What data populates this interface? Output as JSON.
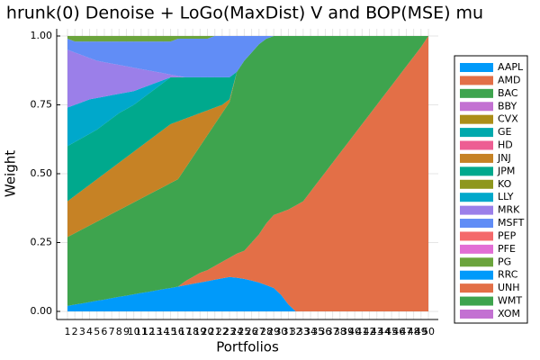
{
  "chart_data": {
    "type": "stacked_area",
    "title": "hrunk(0) Denoise + LoGo(MaxDist) V and BOP(MSE) mu",
    "x_label": "Portfolios",
    "y_label": "Weight",
    "categories": [
      "1",
      "2",
      "3",
      "4",
      "5",
      "6",
      "7",
      "8",
      "9",
      "10",
      "11",
      "12",
      "13",
      "14",
      "15",
      "16",
      "17",
      "18",
      "19",
      "20",
      "21",
      "22",
      "23",
      "24",
      "25",
      "26",
      "27",
      "28",
      "29",
      "30",
      "31",
      "32",
      "33",
      "34",
      "35",
      "36",
      "37",
      "38",
      "39",
      "40",
      "41",
      "42",
      "43",
      "44",
      "45",
      "46",
      "47",
      "48",
      "49",
      "50"
    ],
    "ylim": [
      0,
      1
    ],
    "yticks": [
      {
        "value": 0,
        "label": "0.00"
      },
      {
        "value": 0.25,
        "label": "0.25"
      },
      {
        "value": 0.5,
        "label": "0.50"
      },
      {
        "value": 0.75,
        "label": "0.75"
      },
      {
        "value": 1,
        "label": "1.00"
      }
    ],
    "grid": true,
    "series": [
      {
        "name": "AAPL",
        "color": "#009AFA",
        "values": [
          0.02,
          0.025,
          0.029,
          0.034,
          0.039,
          0.043,
          0.048,
          0.053,
          0.057,
          0.062,
          0.067,
          0.071,
          0.076,
          0.081,
          0.085,
          0.09,
          0.095,
          0.1,
          0.105,
          0.11,
          0.115,
          0.12,
          0.125,
          0.122,
          0.118,
          0.112,
          0.105,
          0.095,
          0.085,
          0.06,
          0.025,
          0,
          0,
          0,
          0,
          0,
          0,
          0,
          0,
          0,
          0,
          0,
          0,
          0,
          0,
          0,
          0,
          0,
          0,
          0
        ]
      },
      {
        "name": "AMD",
        "color": "#E36F47",
        "values": [
          0,
          0,
          0,
          0,
          0,
          0,
          0,
          0,
          0,
          0,
          0,
          0,
          0,
          0,
          0,
          0,
          0.015,
          0.025,
          0.035,
          0.04,
          0.05,
          0.06,
          0.07,
          0.088,
          0.102,
          0.138,
          0.175,
          0.225,
          0.265,
          0.3,
          0.345,
          0.385,
          0.4,
          0.435,
          0.47,
          0.505,
          0.54,
          0.575,
          0.61,
          0.645,
          0.68,
          0.715,
          0.75,
          0.785,
          0.82,
          0.855,
          0.89,
          0.925,
          0.96,
          1.0
        ]
      },
      {
        "name": "BAC",
        "color": "#3EA44E",
        "values": [
          0.25,
          0.259,
          0.269,
          0.278,
          0.287,
          0.297,
          0.306,
          0.315,
          0.325,
          0.334,
          0.343,
          0.353,
          0.362,
          0.371,
          0.381,
          0.39,
          0.41,
          0.435,
          0.46,
          0.49,
          0.515,
          0.54,
          0.565,
          0.66,
          0.69,
          0.69,
          0.69,
          0.67,
          0.65,
          0.64,
          0.63,
          0.615,
          0.6,
          0.565,
          0.53,
          0.495,
          0.46,
          0.425,
          0.39,
          0.355,
          0.32,
          0.285,
          0.25,
          0.215,
          0.18,
          0.145,
          0.11,
          0.075,
          0.04,
          0
        ]
      },
      {
        "name": "BBY",
        "color": "#C371D2",
        "values": [
          0,
          0,
          0,
          0,
          0,
          0,
          0,
          0,
          0,
          0,
          0,
          0,
          0,
          0,
          0,
          0,
          0,
          0,
          0,
          0,
          0,
          0,
          0,
          0,
          0,
          0,
          0,
          0,
          0,
          0,
          0,
          0,
          0,
          0,
          0,
          0,
          0,
          0,
          0,
          0,
          0,
          0,
          0,
          0,
          0,
          0,
          0,
          0,
          0,
          0
        ]
      },
      {
        "name": "CVX",
        "color": "#AC8E18",
        "values": [
          0,
          0,
          0,
          0,
          0,
          0,
          0,
          0,
          0,
          0,
          0,
          0,
          0,
          0,
          0,
          0,
          0,
          0,
          0,
          0,
          0,
          0,
          0,
          0,
          0,
          0,
          0,
          0,
          0,
          0,
          0,
          0,
          0,
          0,
          0,
          0,
          0,
          0,
          0,
          0,
          0,
          0,
          0,
          0,
          0,
          0,
          0,
          0,
          0,
          0
        ]
      },
      {
        "name": "GE",
        "color": "#00A9AD",
        "values": [
          0,
          0,
          0,
          0,
          0,
          0,
          0,
          0,
          0,
          0,
          0,
          0,
          0,
          0,
          0,
          0,
          0,
          0,
          0,
          0,
          0,
          0,
          0,
          0,
          0,
          0,
          0,
          0,
          0,
          0,
          0,
          0,
          0,
          0,
          0,
          0,
          0,
          0,
          0,
          0,
          0,
          0,
          0,
          0,
          0,
          0,
          0,
          0,
          0,
          0
        ]
      },
      {
        "name": "HD",
        "color": "#ED5E93",
        "values": [
          0,
          0,
          0,
          0,
          0,
          0,
          0,
          0,
          0,
          0,
          0,
          0,
          0,
          0,
          0,
          0,
          0,
          0,
          0,
          0,
          0,
          0,
          0,
          0,
          0,
          0,
          0,
          0,
          0,
          0,
          0,
          0,
          0,
          0,
          0,
          0,
          0,
          0,
          0,
          0,
          0,
          0,
          0,
          0,
          0,
          0,
          0,
          0,
          0,
          0
        ]
      },
      {
        "name": "JNJ",
        "color": "#C68225",
        "values": [
          0.13,
          0.136,
          0.142,
          0.148,
          0.154,
          0.16,
          0.166,
          0.172,
          0.178,
          0.184,
          0.19,
          0.196,
          0.202,
          0.208,
          0.214,
          0.21,
          0.18,
          0.15,
          0.12,
          0.09,
          0.06,
          0.03,
          0.01,
          0,
          0,
          0,
          0,
          0,
          0,
          0,
          0,
          0,
          0,
          0,
          0,
          0,
          0,
          0,
          0,
          0,
          0,
          0,
          0,
          0,
          0,
          0,
          0,
          0,
          0,
          0
        ]
      },
      {
        "name": "JPM",
        "color": "#00A98D",
        "values": [
          0.2,
          0.195,
          0.19,
          0.185,
          0.18,
          0.18,
          0.18,
          0.18,
          0.175,
          0.17,
          0.17,
          0.17,
          0.17,
          0.17,
          0.17,
          0.16,
          0.15,
          0.14,
          0.13,
          0.12,
          0.11,
          0.1,
          0.08,
          0,
          0,
          0,
          0,
          0,
          0,
          0,
          0,
          0,
          0,
          0,
          0,
          0,
          0,
          0,
          0,
          0,
          0,
          0,
          0,
          0,
          0,
          0,
          0,
          0,
          0,
          0
        ]
      },
      {
        "name": "KO",
        "color": "#8E971D",
        "values": [
          0,
          0,
          0,
          0,
          0,
          0,
          0,
          0,
          0,
          0,
          0,
          0,
          0,
          0,
          0,
          0,
          0,
          0,
          0,
          0,
          0,
          0,
          0,
          0,
          0,
          0,
          0,
          0,
          0,
          0,
          0,
          0,
          0,
          0,
          0,
          0,
          0,
          0,
          0,
          0,
          0,
          0,
          0,
          0,
          0,
          0,
          0,
          0,
          0,
          0
        ]
      },
      {
        "name": "LLY",
        "color": "#00A8CB",
        "values": [
          0.14,
          0.135,
          0.13,
          0.125,
          0.115,
          0.1,
          0.085,
          0.07,
          0.06,
          0.05,
          0.04,
          0.03,
          0.02,
          0.01,
          0,
          0,
          0,
          0,
          0,
          0,
          0,
          0,
          0,
          0,
          0,
          0,
          0,
          0,
          0,
          0,
          0,
          0,
          0,
          0,
          0,
          0,
          0,
          0,
          0,
          0,
          0,
          0,
          0,
          0,
          0,
          0,
          0,
          0,
          0,
          0
        ]
      },
      {
        "name": "MRK",
        "color": "#9B7FE9",
        "values": [
          0.21,
          0.19,
          0.17,
          0.15,
          0.135,
          0.125,
          0.115,
          0.105,
          0.095,
          0.085,
          0.07,
          0.055,
          0.04,
          0.025,
          0.01,
          0.005,
          0,
          0,
          0,
          0,
          0,
          0,
          0,
          0,
          0,
          0,
          0,
          0,
          0,
          0,
          0,
          0,
          0,
          0,
          0,
          0,
          0,
          0,
          0,
          0,
          0,
          0,
          0,
          0,
          0,
          0,
          0,
          0,
          0,
          0
        ]
      },
      {
        "name": "MSFT",
        "color": "#618DF6",
        "values": [
          0.04,
          0.04,
          0.05,
          0.06,
          0.07,
          0.075,
          0.08,
          0.085,
          0.09,
          0.095,
          0.1,
          0.105,
          0.11,
          0.115,
          0.12,
          0.135,
          0.14,
          0.14,
          0.14,
          0.14,
          0.15,
          0.15,
          0.15,
          0.13,
          0.09,
          0.06,
          0.03,
          0.01,
          0,
          0,
          0,
          0,
          0,
          0,
          0,
          0,
          0,
          0,
          0,
          0,
          0,
          0,
          0,
          0,
          0,
          0,
          0,
          0,
          0,
          0
        ]
      },
      {
        "name": "PEP",
        "color": "#F4696B",
        "values": [
          0,
          0,
          0,
          0,
          0,
          0,
          0,
          0,
          0,
          0,
          0,
          0,
          0,
          0,
          0,
          0,
          0,
          0,
          0,
          0,
          0,
          0,
          0,
          0,
          0,
          0,
          0,
          0,
          0,
          0,
          0,
          0,
          0,
          0,
          0,
          0,
          0,
          0,
          0,
          0,
          0,
          0,
          0,
          0,
          0,
          0,
          0,
          0,
          0,
          0
        ]
      },
      {
        "name": "PFE",
        "color": "#E26ED5",
        "values": [
          0,
          0,
          0,
          0,
          0,
          0,
          0,
          0,
          0,
          0,
          0,
          0,
          0,
          0,
          0,
          0,
          0,
          0,
          0,
          0,
          0,
          0,
          0,
          0,
          0,
          0,
          0,
          0,
          0,
          0,
          0,
          0,
          0,
          0,
          0,
          0,
          0,
          0,
          0,
          0,
          0,
          0,
          0,
          0,
          0,
          0,
          0,
          0,
          0,
          0
        ]
      },
      {
        "name": "PG",
        "color": "#6BA43C",
        "values": [
          0.01,
          0.02,
          0.02,
          0.02,
          0.02,
          0.02,
          0.02,
          0.02,
          0.02,
          0.02,
          0.02,
          0.02,
          0.02,
          0.02,
          0.02,
          0.01,
          0.01,
          0.01,
          0.01,
          0.01,
          0,
          0,
          0,
          0,
          0,
          0,
          0,
          0,
          0,
          0,
          0,
          0,
          0,
          0,
          0,
          0,
          0,
          0,
          0,
          0,
          0,
          0,
          0,
          0,
          0,
          0,
          0,
          0,
          0,
          0
        ]
      },
      {
        "name": "RRC",
        "color": "#009AFA",
        "values": [
          0,
          0,
          0,
          0,
          0,
          0,
          0,
          0,
          0,
          0,
          0,
          0,
          0,
          0,
          0,
          0,
          0,
          0,
          0,
          0,
          0,
          0,
          0,
          0,
          0,
          0,
          0,
          0,
          0,
          0,
          0,
          0,
          0,
          0,
          0,
          0,
          0,
          0,
          0,
          0,
          0,
          0,
          0,
          0,
          0,
          0,
          0,
          0,
          0,
          0
        ]
      },
      {
        "name": "UNH",
        "color": "#E36F47",
        "values": [
          0,
          0,
          0,
          0,
          0,
          0,
          0,
          0,
          0,
          0,
          0,
          0,
          0,
          0,
          0,
          0,
          0,
          0,
          0,
          0,
          0,
          0,
          0,
          0,
          0,
          0,
          0,
          0,
          0,
          0,
          0,
          0,
          0,
          0,
          0,
          0,
          0,
          0,
          0,
          0,
          0,
          0,
          0,
          0,
          0,
          0,
          0,
          0,
          0,
          0
        ]
      },
      {
        "name": "WMT",
        "color": "#3EA44E",
        "values": [
          0,
          0,
          0,
          0,
          0,
          0,
          0,
          0,
          0,
          0,
          0,
          0,
          0,
          0,
          0,
          0,
          0,
          0,
          0,
          0,
          0,
          0,
          0,
          0,
          0,
          0,
          0,
          0,
          0,
          0,
          0,
          0,
          0,
          0,
          0,
          0,
          0,
          0,
          0,
          0,
          0,
          0,
          0,
          0,
          0,
          0,
          0,
          0,
          0,
          0
        ]
      },
      {
        "name": "XOM",
        "color": "#C371D2",
        "values": [
          0,
          0,
          0,
          0,
          0,
          0,
          0,
          0,
          0,
          0,
          0,
          0,
          0,
          0,
          0,
          0,
          0,
          0,
          0,
          0,
          0,
          0,
          0,
          0,
          0,
          0,
          0,
          0,
          0,
          0,
          0,
          0,
          0,
          0,
          0,
          0,
          0,
          0,
          0,
          0,
          0,
          0,
          0,
          0,
          0,
          0,
          0,
          0,
          0,
          0
        ]
      }
    ]
  }
}
